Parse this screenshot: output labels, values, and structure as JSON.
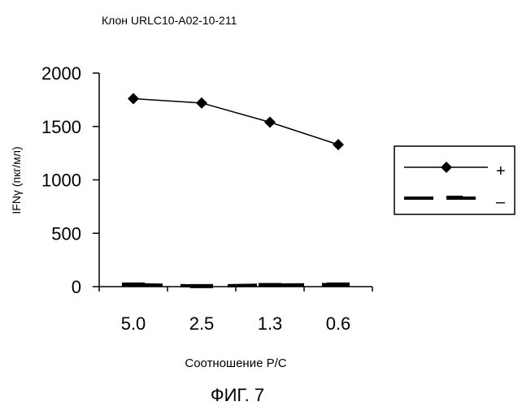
{
  "chart_data": {
    "type": "line",
    "title": "Клон URLC10-A02-10-211",
    "xlabel": "Соотношение Р/С",
    "ylabel": "IFNγ (пкг/мл)",
    "categories": [
      "5.0",
      "2.5",
      "1.3",
      "0.6"
    ],
    "ylim": [
      0,
      2000
    ],
    "yticks": [
      "0",
      "500",
      "1000",
      "1500",
      "2000"
    ],
    "legend_position": "right",
    "grid": false,
    "series": [
      {
        "name": "+",
        "values": [
          1760,
          1720,
          1540,
          1330
        ],
        "marker": "diamond",
        "line": "solid",
        "color": "#000000"
      },
      {
        "name": "–",
        "values": [
          20,
          5,
          15,
          20
        ],
        "marker": "dash",
        "line": "dashed",
        "color": "#000000"
      }
    ]
  },
  "figure_caption": "ФИГ. 7"
}
